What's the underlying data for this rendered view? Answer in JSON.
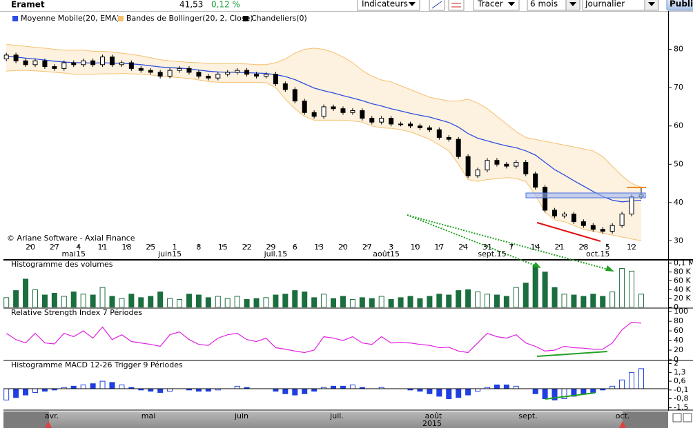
{
  "header": {
    "symbol": "Eramet",
    "price": "41,53",
    "change": "0,12 %"
  },
  "toolbar": {
    "indicators": "Indicateurs",
    "draw": "Tracer",
    "period": "6 mois",
    "interval": "Journalier",
    "publish": "Publi"
  },
  "navigator": {
    "months": [
      "avr.",
      "mai",
      "juin",
      "juil.",
      "août",
      "sept.",
      "oct."
    ],
    "year": "2015"
  },
  "chart_data": [
    {
      "type": "candlestick",
      "annotation": "© Ariane Software - Axial Finance",
      "x": [
        -5,
        -3,
        -1,
        1,
        3,
        5,
        7,
        9,
        11,
        13,
        15,
        17,
        19,
        21,
        23,
        25,
        27,
        29,
        31,
        33,
        35,
        37,
        39,
        41,
        43,
        45,
        47,
        49,
        51,
        53,
        55,
        57,
        59,
        61,
        63,
        65,
        67,
        69,
        71,
        73,
        75,
        77,
        79,
        81,
        83,
        85,
        87,
        89,
        91,
        93,
        95,
        97,
        99,
        101,
        103,
        105,
        107,
        109,
        111,
        113,
        115,
        117,
        119,
        121,
        123,
        125,
        127
      ],
      "xlim": [
        -5.6,
        132.6
      ],
      "xticks": [
        {
          "value": 0,
          "label": "20"
        },
        {
          "value": 5,
          "label": "27"
        },
        {
          "value": 10,
          "label": "4"
        },
        {
          "value": 15,
          "label": "11"
        },
        {
          "value": 20,
          "label": "18"
        },
        {
          "value": 25,
          "label": "25"
        },
        {
          "value": 30,
          "label": "1"
        },
        {
          "value": 35,
          "label": "8"
        },
        {
          "value": 40,
          "label": "15"
        },
        {
          "value": 45,
          "label": "22"
        },
        {
          "value": 50,
          "label": "29"
        },
        {
          "value": 55,
          "label": "6"
        },
        {
          "value": 60,
          "label": "13"
        },
        {
          "value": 65,
          "label": "20"
        },
        {
          "value": 70,
          "label": "27"
        },
        {
          "value": 75,
          "label": "3"
        },
        {
          "value": 80,
          "label": "10"
        },
        {
          "value": 85,
          "label": "17"
        },
        {
          "value": 90,
          "label": "24"
        },
        {
          "value": 95,
          "label": "31"
        },
        {
          "value": 100,
          "label": "7"
        },
        {
          "value": 105,
          "label": "14"
        },
        {
          "value": 110,
          "label": "21"
        },
        {
          "value": 115,
          "label": "28"
        },
        {
          "value": 120,
          "label": "5"
        },
        {
          "value": 125,
          "label": "12"
        }
      ],
      "month_ticks": [
        {
          "value": 9,
          "label": "mai15"
        },
        {
          "value": 29,
          "label": "juin15"
        },
        {
          "value": 51,
          "label": "juil.15"
        },
        {
          "value": 74,
          "label": "août15"
        },
        {
          "value": 96,
          "label": "sept.15"
        },
        {
          "value": 118,
          "label": "oct.15"
        }
      ],
      "ylim": [
        29,
        90
      ],
      "yticks": [
        30,
        40,
        50,
        60,
        70,
        80
      ],
      "series": [
        {
          "name": "Moyenne Mobile(20, EMA)",
          "type": "line",
          "color": "#2b4ee0",
          "values": [
            78.2,
            78,
            77.7,
            77.5,
            77.2,
            76.9,
            76.7,
            76.5,
            76.5,
            76.4,
            76.5,
            76.4,
            76.4,
            76.2,
            76,
            75.7,
            75.4,
            75.2,
            75.1,
            74.9,
            74.6,
            74.3,
            74.1,
            74,
            74,
            73.9,
            73.8,
            73.7,
            73.4,
            72.9,
            72.1,
            71,
            69.9,
            69.2,
            68.6,
            67.9,
            67.3,
            66.6,
            65.8,
            65.2,
            64.5,
            63.9,
            63.3,
            62.8,
            62.3,
            61.6,
            60.9,
            59.7,
            58,
            56.8,
            56.1,
            55.4,
            54.8,
            54.3,
            53.5,
            52.4,
            50.5,
            48.6,
            47.2,
            45.7,
            44.3,
            42.9,
            41.6,
            40.6,
            40.2,
            40.4,
            40.6
          ]
        },
        {
          "name": "Bandes de Bollinger(20, 2, Close)",
          "type": "band",
          "color": "#f5c06e",
          "upper": [
            81.3,
            81,
            80.8,
            80.5,
            80.3,
            80,
            79.8,
            79.8,
            79.8,
            79.5,
            79.5,
            79.3,
            79,
            78.7,
            78.3,
            77.8,
            77.3,
            77,
            76.8,
            76.6,
            76.5,
            76.3,
            76.3,
            76.3,
            76.3,
            76.2,
            76,
            76,
            76.5,
            77.5,
            79,
            80,
            80.3,
            80,
            79.2,
            78,
            76.5,
            74.5,
            73,
            72,
            71.5,
            70.5,
            69.5,
            68.5,
            67.5,
            67,
            66.5,
            66.5,
            67,
            66,
            64.5,
            62.5,
            60.5,
            58.5,
            57,
            56.5,
            56,
            55.5,
            55,
            54.5,
            54,
            53.5,
            52,
            49.5,
            47,
            45,
            44
          ],
          "lower": [
            74.3,
            74.5,
            74.5,
            74.4,
            74.2,
            74,
            73.8,
            73.5,
            73.5,
            73.5,
            73.6,
            73.6,
            73.7,
            73.6,
            73.5,
            73.3,
            73,
            72.8,
            72.6,
            72.4,
            72,
            71.6,
            71.4,
            71.4,
            71.4,
            71.4,
            71.4,
            71.3,
            70,
            67,
            64.5,
            62.5,
            61.5,
            61.5,
            61.5,
            61.5,
            61.3,
            61,
            60,
            59.5,
            59.4,
            59,
            58.5,
            57.5,
            56.5,
            55,
            53.5,
            50,
            46,
            45.5,
            46,
            46.2,
            46.5,
            46.3,
            45.5,
            42,
            37.5,
            35.5,
            35,
            34,
            33,
            32.5,
            32,
            31.5,
            31,
            30.5,
            30
          ]
        },
        {
          "name": "Chandeliers(0)",
          "type": "candlestick",
          "color": "#000000",
          "open": [
            77.5,
            78.5,
            77,
            76,
            77,
            75.5,
            75,
            76.5,
            76,
            77,
            76,
            78,
            76,
            76.5,
            75,
            74.5,
            74,
            73,
            74.5,
            75,
            74,
            73,
            72.5,
            73.5,
            74,
            74.5,
            73.5,
            73,
            73.5,
            71,
            69.5,
            66.5,
            63.5,
            62.5,
            65,
            64.5,
            63.5,
            64,
            62,
            61,
            62,
            60.5,
            60.5,
            60,
            59.5,
            59,
            57,
            56.5,
            52,
            47,
            48.5,
            51,
            50,
            49.5,
            50.5,
            47.5,
            44,
            38,
            36.5,
            37,
            35,
            34,
            33,
            32.5,
            34,
            37,
            41.5
          ],
          "high": [
            79.1,
            79.1,
            77.6,
            77.6,
            77.6,
            76.1,
            77.1,
            77.1,
            77.6,
            77.6,
            78.6,
            78.6,
            77.1,
            77.1,
            75.6,
            75.1,
            74.6,
            75.1,
            75.6,
            75.6,
            74.6,
            73.6,
            74.1,
            74.6,
            75.1,
            75.1,
            74.1,
            74.1,
            74.1,
            71.6,
            70.1,
            67.1,
            64.1,
            65.6,
            65.6,
            65.1,
            64.6,
            64.6,
            62.6,
            62.6,
            62.6,
            61.1,
            61.1,
            60.6,
            60.1,
            59.6,
            57.6,
            57.1,
            52.6,
            49.1,
            51.6,
            51.6,
            50.6,
            51.1,
            51.1,
            48.1,
            44.6,
            38.6,
            37.6,
            37.6,
            35.6,
            34.6,
            33.6,
            34.6,
            37.6,
            42.1,
            44
          ],
          "low": [
            76.9,
            76.4,
            75.4,
            75.4,
            74.9,
            74.4,
            74.4,
            75.4,
            75.4,
            75.4,
            75.4,
            75.4,
            75.4,
            74.4,
            73.9,
            73.4,
            72.4,
            72.4,
            73.9,
            73.4,
            72.4,
            71.9,
            71.9,
            72.9,
            73.4,
            72.9,
            72.4,
            72.4,
            70.4,
            68.9,
            65.9,
            62.9,
            61.9,
            61.9,
            63.9,
            62.9,
            62.9,
            61.4,
            60.4,
            60.4,
            59.9,
            59.9,
            59.4,
            58.9,
            58.4,
            56.4,
            55.9,
            51.4,
            46.4,
            46.4,
            47.9,
            49.4,
            48.9,
            48.9,
            46.9,
            43.4,
            37.4,
            35.9,
            35.9,
            34.4,
            33.4,
            32.4,
            31.9,
            31.9,
            33.4,
            36.4,
            40.9
          ],
          "close": [
            78.5,
            77,
            76,
            77,
            75.5,
            75,
            76.5,
            76,
            77,
            76,
            78,
            76,
            76.5,
            75,
            74.5,
            74,
            73,
            74.5,
            75,
            74,
            73,
            72.5,
            73.5,
            74,
            74.5,
            73.5,
            73,
            73.5,
            71,
            69.5,
            66.5,
            63.5,
            62.5,
            65,
            64.5,
            63.5,
            64,
            62,
            61,
            62,
            60.5,
            60.5,
            60,
            59.5,
            59,
            57,
            56.5,
            52,
            47,
            48.5,
            51,
            50,
            49.5,
            50.5,
            47.5,
            44,
            38,
            36.5,
            37,
            35,
            34,
            33,
            32.5,
            34,
            37,
            41.5,
            42
          ]
        }
      ]
    },
    {
      "type": "bar",
      "title": "Histogramme des volumes",
      "color": "#1b6e3e",
      "values": [
        22000,
        38000,
        64000,
        40000,
        28000,
        32000,
        25000,
        35000,
        30000,
        28000,
        45000,
        25000,
        20000,
        30000,
        22000,
        25000,
        35000,
        20000,
        18000,
        30000,
        28000,
        22000,
        25000,
        20000,
        25000,
        18000,
        20000,
        22000,
        28000,
        30000,
        38000,
        35000,
        22000,
        30000,
        20000,
        25000,
        18000,
        22000,
        20000,
        25000,
        18000,
        22000,
        25000,
        20000,
        25000,
        30000,
        28000,
        38000,
        40000,
        35000,
        30000,
        28000,
        25000,
        45000,
        55000,
        95000,
        80000,
        45000,
        30000,
        28000,
        25000,
        30000,
        25000,
        35000,
        88000,
        82000,
        30000
      ],
      "ylim": [
        0,
        106000
      ],
      "yticks": [
        0,
        {
          "value": 20000,
          "label": "20 K"
        },
        {
          "value": 40000,
          "label": "40 K"
        },
        {
          "value": 60000,
          "label": "60 K"
        },
        {
          "value": 80000,
          "label": "80 K"
        },
        {
          "value": 100000,
          "label": "0,1 M"
        }
      ]
    },
    {
      "type": "line",
      "title": "Relative Strength Index 7 Périodes",
      "color": "#e020e0",
      "values": [
        55,
        42,
        35,
        55,
        35,
        33,
        55,
        48,
        60,
        45,
        68,
        42,
        52,
        38,
        35,
        32,
        28,
        52,
        58,
        42,
        32,
        30,
        45,
        52,
        55,
        42,
        38,
        45,
        25,
        22,
        18,
        15,
        20,
        48,
        45,
        40,
        48,
        35,
        32,
        48,
        35,
        36,
        35,
        32,
        30,
        25,
        26,
        18,
        15,
        35,
        55,
        48,
        45,
        52,
        35,
        28,
        18,
        20,
        28,
        25,
        24,
        22,
        22,
        35,
        62,
        78,
        76
      ],
      "ylim": [
        0,
        106
      ],
      "yticks": [
        0,
        20,
        40,
        60,
        80,
        100
      ]
    },
    {
      "type": "bar",
      "title": "Histogramme MACD 12-26  Trigger 9 Périodes",
      "color": "#1f3fe0",
      "values": [
        -0.9,
        -0.7,
        -0.5,
        -0.3,
        -0.2,
        -0.1,
        0.1,
        0.2,
        0.3,
        0.4,
        0.6,
        0.5,
        0.3,
        0.1,
        -0.1,
        -0.2,
        -0.3,
        -0.2,
        0,
        -0.1,
        -0.2,
        -0.2,
        -0.1,
        0,
        0.2,
        0.1,
        0,
        0,
        -0.2,
        -0.4,
        -0.5,
        -0.4,
        -0.2,
        0.1,
        0.2,
        0.2,
        0.3,
        0.1,
        0,
        0.1,
        0,
        0,
        -0.1,
        -0.2,
        -0.4,
        -0.6,
        -0.8,
        -0.7,
        -0.5,
        -0.2,
        0.1,
        0.3,
        0.3,
        0.2,
        0,
        -0.4,
        -0.8,
        -0.9,
        -0.8,
        -0.6,
        -0.4,
        -0.3,
        -0.1,
        0.2,
        0.7,
        1.3,
        1.6
      ],
      "ylim": [
        -1.65,
        2.2
      ],
      "yticks": [
        {
          "value": -1.5,
          "label": "-1,5"
        },
        {
          "value": -0.8,
          "label": "-0,8"
        },
        {
          "value": -0.1,
          "label": "-0,1"
        },
        {
          "value": 0.6,
          "label": "0,6"
        },
        {
          "value": 1.3,
          "label": "1,3"
        },
        2
      ]
    }
  ]
}
